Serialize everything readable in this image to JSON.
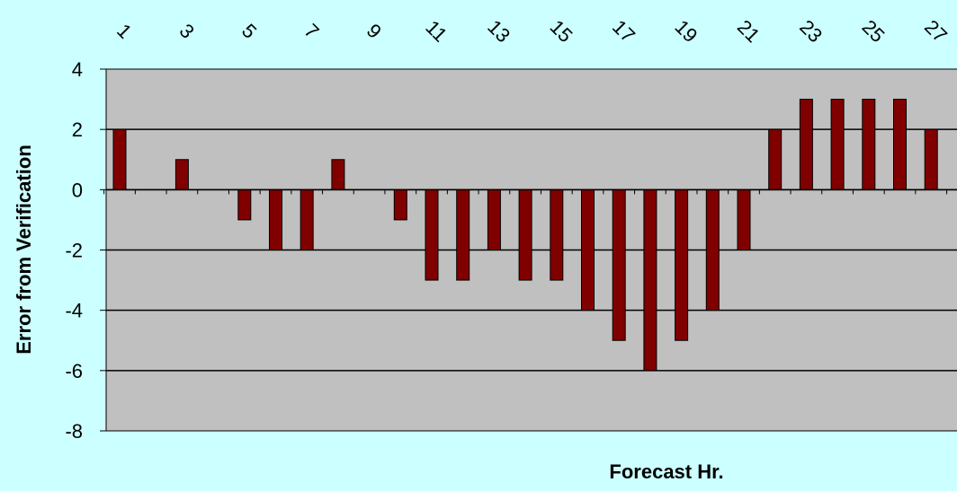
{
  "chart_data": {
    "type": "bar",
    "title": "",
    "xlabel": "Forecast Hr.",
    "ylabel": "Error from Verification",
    "ylim": [
      -8,
      4
    ],
    "yticks": [
      -8,
      -6,
      -4,
      -2,
      0,
      2,
      4
    ],
    "grid": true,
    "legend": "none",
    "categories": [
      1,
      2,
      3,
      4,
      5,
      6,
      7,
      8,
      9,
      10,
      11,
      12,
      13,
      14,
      15,
      16,
      17,
      18,
      19,
      20,
      21,
      22,
      23,
      24,
      25,
      26,
      27
    ],
    "xtick_labels": [
      "1",
      "3",
      "5",
      "7",
      "9",
      "11",
      "13",
      "15",
      "17",
      "19",
      "21",
      "23",
      "25",
      "27"
    ],
    "values": [
      2,
      0,
      1,
      0,
      -1,
      -2,
      -2,
      1,
      0,
      -1,
      -3,
      -3,
      -2,
      -3,
      -3,
      -4,
      -5,
      -6,
      -5,
      -4,
      -2,
      2,
      3,
      3,
      3,
      3,
      2
    ]
  },
  "colors": {
    "background": "#ccffff",
    "plot_area": "#c0c0c0",
    "bar_fill": "#800000",
    "bar_stroke": "#000000"
  }
}
